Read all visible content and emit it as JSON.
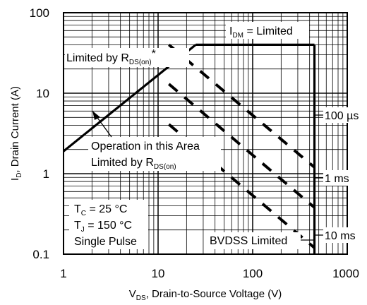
{
  "chart_data": {
    "type": "line",
    "scale": {
      "x": "log",
      "y": "log"
    },
    "xlim": [
      1,
      1000
    ],
    "ylim": [
      0.1,
      100
    ],
    "grid": true,
    "x_ticks": [
      "1",
      "10",
      "100",
      "1000"
    ],
    "y_ticks": [
      "100",
      "10",
      "1",
      "0.1"
    ],
    "xlabel": {
      "pre": "V",
      "sub": "DS",
      "post": ", Drain-to-Source Voltage (V)"
    },
    "ylabel": {
      "pre": "I",
      "sub": "D",
      "post": ", Drain Current (A)"
    },
    "series": [
      {
        "name": "Limited by RDS(on)",
        "style": "solid",
        "points": [
          [
            1,
            1.9
          ],
          [
            25,
            40
          ]
        ]
      },
      {
        "name": "IDM = Limited",
        "style": "solid",
        "points": [
          [
            25,
            40
          ],
          [
            450,
            40
          ]
        ]
      },
      {
        "name": "BVDSS Limited",
        "style": "solid",
        "points": [
          [
            450,
            40
          ],
          [
            450,
            0.1
          ]
        ]
      },
      {
        "name": "100 µs",
        "style": "dashed",
        "points": [
          [
            13,
            40
          ],
          [
            450,
            1.2
          ]
        ]
      },
      {
        "name": "1 ms",
        "style": "dashed",
        "points": [
          [
            13,
            13
          ],
          [
            450,
            0.38
          ]
        ]
      },
      {
        "name": "10 ms",
        "style": "dashed",
        "points": [
          [
            13,
            4.1
          ],
          [
            450,
            0.12
          ]
        ]
      }
    ],
    "annotations": {
      "idm": {
        "pre": "I",
        "sub": "DM",
        "post": " = Limited"
      },
      "rds_top": {
        "pre": "Limited by R",
        "sub": "DS(on)",
        "post": "*"
      },
      "op_line1": "Operation in this Area",
      "op_line2": {
        "pre": "Limited by R",
        "sub": "DS(on)",
        "post": ""
      },
      "label_100us": "100 µs",
      "label_1ms": "1 ms",
      "label_10ms": "10 ms",
      "bvdss": "BVDSS Limited",
      "cond1": {
        "pre": "T",
        "sub": "C",
        "post": " = 25 °C"
      },
      "cond2": {
        "pre": "T",
        "sub": "J",
        "post": " = 150 °C"
      },
      "cond3": "Single Pulse"
    }
  }
}
